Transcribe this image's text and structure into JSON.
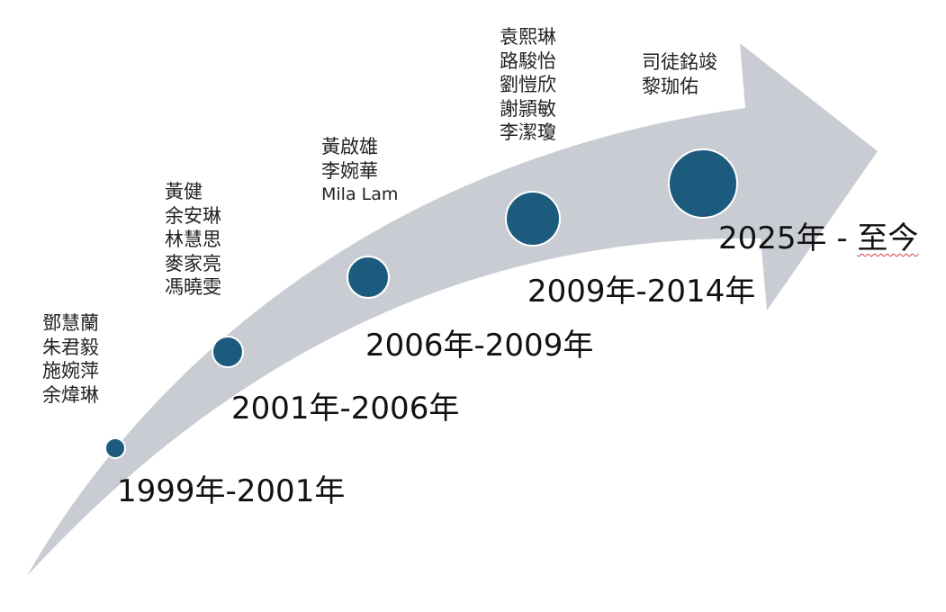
{
  "colors": {
    "arrow": "#c9cdd3",
    "dot": "#1c5a7e",
    "dot_ring": "#ffffff"
  },
  "stages": [
    {
      "period": "1999年-2001年",
      "names": [
        "鄧慧蘭",
        "朱君毅",
        "施婉萍",
        "余煒琳"
      ]
    },
    {
      "period": "2001年-2006年",
      "names": [
        "黃健",
        "余安琳",
        "林慧思",
        "麥家亮",
        "馮曉雯"
      ]
    },
    {
      "period": "2006年-2009年",
      "names": [
        "黃啟雄",
        "李婉華",
        "Mila Lam"
      ]
    },
    {
      "period": "2009年-2014年",
      "names": [
        "袁熙琳",
        "路駿怡",
        "劉愷欣",
        "謝頴敏",
        "李潔瓊"
      ]
    },
    {
      "period_start": "2025年 - ",
      "period_end": "至今",
      "names": [
        "司徒銘竣",
        "黎珈佑"
      ]
    }
  ]
}
